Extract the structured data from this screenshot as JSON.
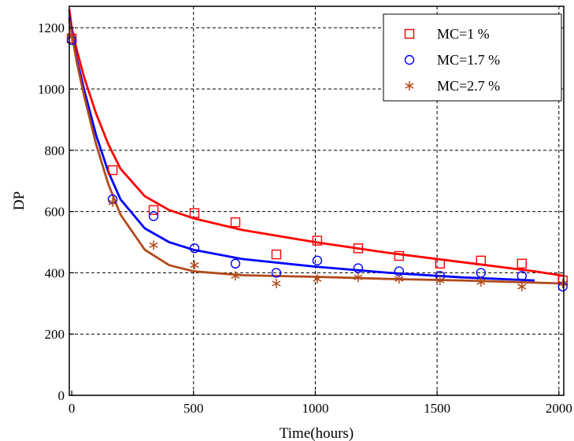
{
  "chart_data": {
    "type": "scatter",
    "title": "",
    "xlabel": "Time(hours)",
    "ylabel": "DP",
    "xlim": [
      -10,
      2020
    ],
    "ylim": [
      0,
      1270
    ],
    "xticks": [
      0,
      500,
      1000,
      1500,
      2000
    ],
    "yticks": [
      0,
      200,
      400,
      600,
      800,
      1000,
      1200
    ],
    "xtick_labels": [
      "0",
      "500",
      "1000",
      "1500",
      "2000"
    ],
    "ytick_labels": [
      "0",
      "200",
      "400",
      "600",
      "800",
      "1000",
      "1200"
    ],
    "grid": true,
    "legend_position": "top-right",
    "series": [
      {
        "name": "MC=1 %",
        "marker": "square",
        "color": "#ff0000",
        "points": [
          [
            0,
            1165
          ],
          [
            168,
            735
          ],
          [
            336,
            605
          ],
          [
            504,
            595
          ],
          [
            672,
            565
          ],
          [
            840,
            460
          ],
          [
            1008,
            505
          ],
          [
            1176,
            480
          ],
          [
            1344,
            455
          ],
          [
            1512,
            430
          ],
          [
            1680,
            440
          ],
          [
            1848,
            430
          ],
          [
            2016,
            375
          ]
        ],
        "fit": [
          [
            -10,
            1260
          ],
          [
            0,
            1200
          ],
          [
            20,
            1130
          ],
          [
            50,
            1040
          ],
          [
            100,
            920
          ],
          [
            150,
            820
          ],
          [
            200,
            740
          ],
          [
            300,
            650
          ],
          [
            400,
            605
          ],
          [
            500,
            578
          ],
          [
            700,
            540
          ],
          [
            1000,
            500
          ],
          [
            1300,
            465
          ],
          [
            1600,
            435
          ],
          [
            1900,
            405
          ],
          [
            2020,
            390
          ]
        ]
      },
      {
        "name": "MC=1.7 %",
        "marker": "circle",
        "color": "#0000ff",
        "points": [
          [
            0,
            1160
          ],
          [
            168,
            640
          ],
          [
            336,
            585
          ],
          [
            504,
            480
          ],
          [
            672,
            430
          ],
          [
            840,
            400
          ],
          [
            1008,
            440
          ],
          [
            1176,
            415
          ],
          [
            1344,
            405
          ],
          [
            1512,
            390
          ],
          [
            1680,
            400
          ],
          [
            1848,
            390
          ],
          [
            2016,
            355
          ]
        ],
        "fit": [
          [
            -10,
            1235
          ],
          [
            0,
            1190
          ],
          [
            20,
            1100
          ],
          [
            50,
            1000
          ],
          [
            100,
            850
          ],
          [
            150,
            730
          ],
          [
            200,
            640
          ],
          [
            300,
            545
          ],
          [
            400,
            500
          ],
          [
            500,
            475
          ],
          [
            700,
            445
          ],
          [
            1000,
            420
          ],
          [
            1300,
            400
          ],
          [
            1600,
            385
          ],
          [
            1900,
            375
          ]
        ]
      },
      {
        "name": "MC=2.7 %",
        "marker": "star",
        "color": "#b24a1a",
        "points": [
          [
            0,
            1170
          ],
          [
            168,
            630
          ],
          [
            336,
            490
          ],
          [
            504,
            425
          ],
          [
            672,
            390
          ],
          [
            840,
            365
          ],
          [
            1008,
            380
          ],
          [
            1176,
            385
          ],
          [
            1344,
            380
          ],
          [
            1512,
            375
          ],
          [
            1680,
            370
          ],
          [
            1848,
            355
          ],
          [
            2016,
            365
          ]
        ],
        "fit": [
          [
            -10,
            1225
          ],
          [
            0,
            1180
          ],
          [
            20,
            1090
          ],
          [
            50,
            980
          ],
          [
            100,
            820
          ],
          [
            150,
            690
          ],
          [
            200,
            590
          ],
          [
            300,
            475
          ],
          [
            400,
            425
          ],
          [
            500,
            405
          ],
          [
            700,
            392
          ],
          [
            1000,
            387
          ],
          [
            1300,
            380
          ],
          [
            1600,
            375
          ],
          [
            1900,
            368
          ],
          [
            2020,
            365
          ]
        ]
      }
    ]
  }
}
